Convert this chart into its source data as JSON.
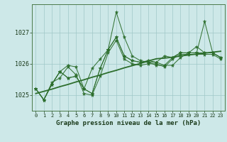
{
  "title": "Graphe pression niveau de la mer (hPa)",
  "background_color": "#cde8e8",
  "line_color": "#2d6e2d",
  "grid_color": "#a0c8c8",
  "xlim": [
    -0.5,
    23.5
  ],
  "ylim": [
    1024.5,
    1027.9
  ],
  "yticks": [
    1025,
    1026,
    1027
  ],
  "xticks": [
    0,
    1,
    2,
    3,
    4,
    5,
    6,
    7,
    8,
    9,
    10,
    11,
    12,
    13,
    14,
    15,
    16,
    17,
    18,
    19,
    20,
    21,
    22,
    23
  ],
  "series": [
    [
      1025.2,
      1024.85,
      1025.35,
      1025.75,
      1025.55,
      1025.6,
      1025.2,
      1025.85,
      1026.15,
      1026.45,
      1027.65,
      1026.85,
      1026.25,
      1026.1,
      1026.05,
      1026.05,
      1025.95,
      1025.95,
      1026.2,
      1026.35,
      1026.35,
      1027.35,
      1026.35,
      1026.2
    ],
    [
      1025.2,
      1024.85,
      1025.35,
      1025.75,
      1025.55,
      1025.6,
      1025.2,
      1025.05,
      1025.85,
      1026.45,
      1026.85,
      1026.25,
      1026.1,
      1026.05,
      1026.05,
      1025.95,
      1025.95,
      1026.2,
      1026.35,
      1026.35,
      1026.35,
      1026.35,
      1026.35,
      1026.2
    ],
    [
      1025.2,
      1024.85,
      1025.35,
      1025.75,
      1025.95,
      1025.9,
      1025.2,
      1025.05,
      1025.85,
      1026.45,
      1026.85,
      1026.25,
      1026.1,
      1026.05,
      1026.1,
      1026.05,
      1026.25,
      1026.2,
      1026.35,
      1026.35,
      1026.55,
      1026.35,
      1026.35,
      1026.2
    ],
    [
      1025.2,
      1024.85,
      1025.4,
      1025.55,
      1025.9,
      1025.65,
      1025.05,
      1025.0,
      1025.6,
      1026.35,
      1026.75,
      1026.15,
      1026.0,
      1025.95,
      1026.0,
      1026.0,
      1025.9,
      1026.15,
      1026.3,
      1026.3,
      1026.3,
      1026.3,
      1026.3,
      1026.15
    ]
  ],
  "trend_series": [
    1025.05,
    1025.12,
    1025.19,
    1025.27,
    1025.34,
    1025.42,
    1025.49,
    1025.57,
    1025.64,
    1025.72,
    1025.79,
    1025.87,
    1025.94,
    1026.01,
    1026.09,
    1026.16,
    1026.18,
    1026.21,
    1026.25,
    1026.28,
    1026.31,
    1026.34,
    1026.37,
    1026.4
  ]
}
